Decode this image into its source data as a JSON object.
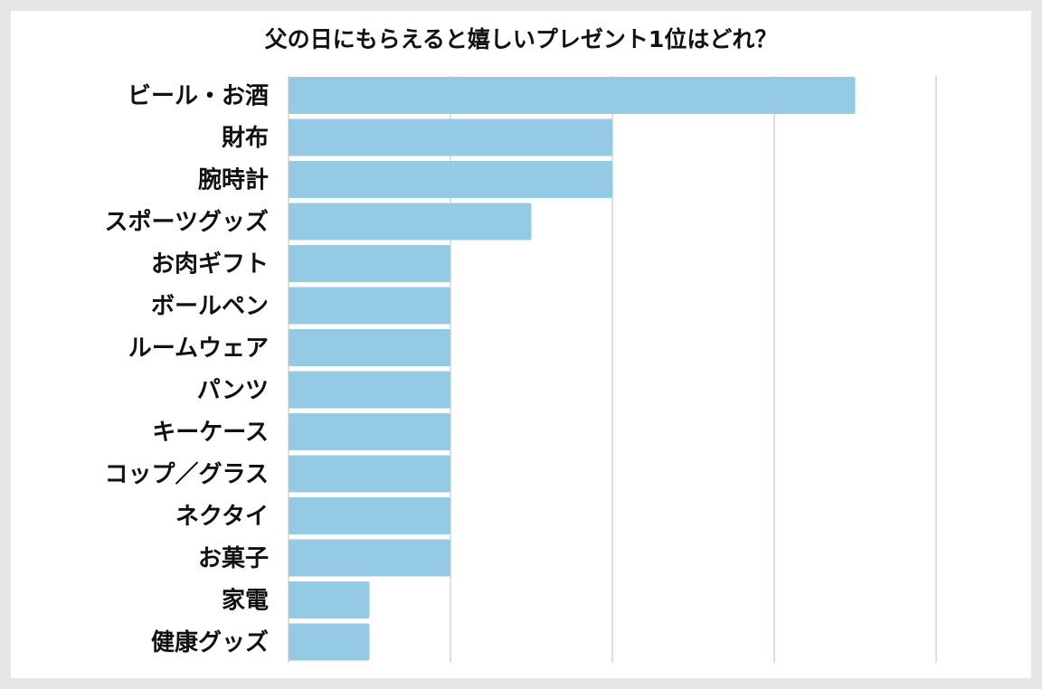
{
  "chart_data": {
    "type": "bar",
    "orientation": "horizontal",
    "title": "父の日にもらえると嬉しいプレゼント1位はどれ？",
    "categories": [
      "ビール・お酒",
      "財布",
      "腕時計",
      "スポーツグッズ",
      "お肉ギフト",
      "ボールペン",
      "ルームウェア",
      "パンツ",
      "キーケース",
      "コップ／グラス",
      "ネクタイ",
      "お菓子",
      "家電",
      "健康グッズ"
    ],
    "values": [
      7,
      4,
      4,
      3,
      2,
      2,
      2,
      2,
      2,
      2,
      2,
      2,
      1,
      1
    ],
    "xlim": [
      0,
      8
    ],
    "grid": true,
    "bar_color": "#95cae4",
    "grid_color": "#c8c8c8",
    "background_color": "#ffffff",
    "frame_color": "#e6e6e6"
  }
}
